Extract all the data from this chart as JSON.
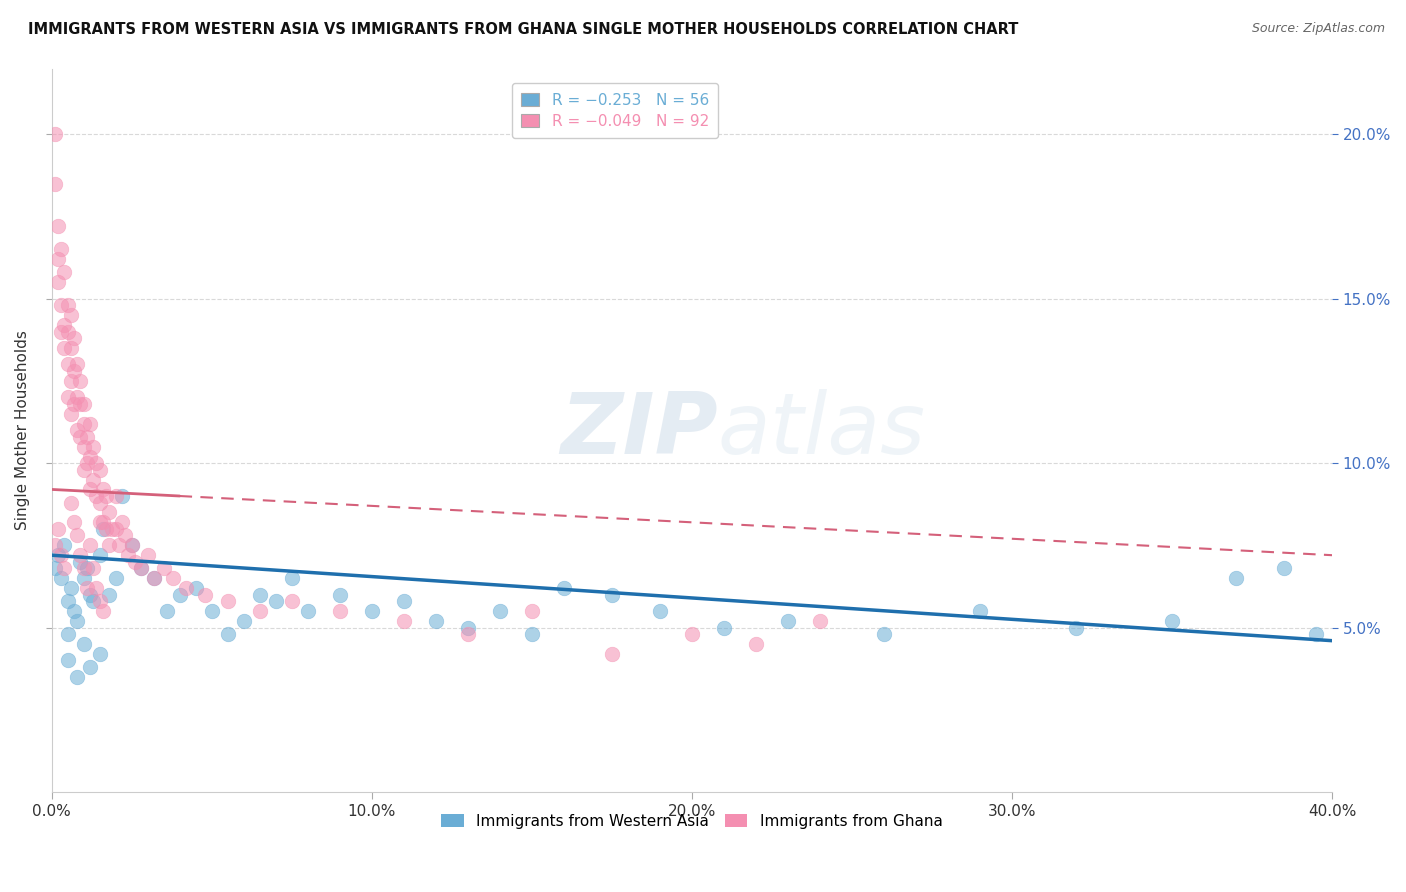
{
  "title": "IMMIGRANTS FROM WESTERN ASIA VS IMMIGRANTS FROM GHANA SINGLE MOTHER HOUSEHOLDS CORRELATION CHART",
  "source": "Source: ZipAtlas.com",
  "ylabel": "Single Mother Households",
  "legend_entries": [
    {
      "label": "R = −0.253   N = 56",
      "color": "#6aadd5"
    },
    {
      "label": "R = −0.049   N = 92",
      "color": "#f48fb1"
    }
  ],
  "bottom_legend": [
    "Immigrants from Western Asia",
    "Immigrants from Ghana"
  ],
  "xlim": [
    0.0,
    0.4
  ],
  "ylim": [
    0.0,
    0.22
  ],
  "right_yticks": [
    0.05,
    0.1,
    0.15,
    0.2
  ],
  "right_ytick_labels": [
    "5.0%",
    "10.0%",
    "15.0%",
    "20.0%"
  ],
  "xticks": [
    0.0,
    0.1,
    0.2,
    0.3,
    0.4
  ],
  "xtick_labels": [
    "0.0%",
    "10.0%",
    "20.0%",
    "30.0%",
    "40.0%"
  ],
  "watermark_zip": "ZIP",
  "watermark_atlas": "atlas",
  "background_color": "#ffffff",
  "grid_color": "#d0d0d0",
  "blue_color": "#6aadd5",
  "pink_color": "#f48fb1",
  "blue_line_color": "#1f6fad",
  "pink_line_color": "#d4607a",
  "wa_trend_start_y": 0.072,
  "wa_trend_end_y": 0.046,
  "gh_trend_start_y": 0.092,
  "gh_trend_end_y": 0.072,
  "western_asia_x": [
    0.001,
    0.002,
    0.003,
    0.004,
    0.005,
    0.005,
    0.006,
    0.007,
    0.008,
    0.009,
    0.01,
    0.011,
    0.012,
    0.013,
    0.015,
    0.016,
    0.018,
    0.02,
    0.022,
    0.025,
    0.028,
    0.032,
    0.036,
    0.04,
    0.045,
    0.05,
    0.055,
    0.06,
    0.065,
    0.07,
    0.075,
    0.08,
    0.09,
    0.1,
    0.11,
    0.12,
    0.13,
    0.14,
    0.15,
    0.16,
    0.175,
    0.19,
    0.21,
    0.23,
    0.26,
    0.29,
    0.32,
    0.35,
    0.37,
    0.385,
    0.395,
    0.005,
    0.008,
    0.01,
    0.012,
    0.015
  ],
  "western_asia_y": [
    0.068,
    0.072,
    0.065,
    0.075,
    0.058,
    0.048,
    0.062,
    0.055,
    0.052,
    0.07,
    0.065,
    0.068,
    0.06,
    0.058,
    0.072,
    0.08,
    0.06,
    0.065,
    0.09,
    0.075,
    0.068,
    0.065,
    0.055,
    0.06,
    0.062,
    0.055,
    0.048,
    0.052,
    0.06,
    0.058,
    0.065,
    0.055,
    0.06,
    0.055,
    0.058,
    0.052,
    0.05,
    0.055,
    0.048,
    0.062,
    0.06,
    0.055,
    0.05,
    0.052,
    0.048,
    0.055,
    0.05,
    0.052,
    0.065,
    0.068,
    0.048,
    0.04,
    0.035,
    0.045,
    0.038,
    0.042
  ],
  "ghana_x": [
    0.001,
    0.001,
    0.002,
    0.002,
    0.002,
    0.003,
    0.003,
    0.003,
    0.004,
    0.004,
    0.004,
    0.005,
    0.005,
    0.005,
    0.005,
    0.006,
    0.006,
    0.006,
    0.006,
    0.007,
    0.007,
    0.007,
    0.008,
    0.008,
    0.008,
    0.009,
    0.009,
    0.009,
    0.01,
    0.01,
    0.01,
    0.01,
    0.011,
    0.011,
    0.012,
    0.012,
    0.012,
    0.013,
    0.013,
    0.014,
    0.014,
    0.015,
    0.015,
    0.015,
    0.016,
    0.016,
    0.017,
    0.017,
    0.018,
    0.018,
    0.019,
    0.02,
    0.02,
    0.021,
    0.022,
    0.023,
    0.024,
    0.025,
    0.026,
    0.028,
    0.03,
    0.032,
    0.035,
    0.038,
    0.042,
    0.048,
    0.055,
    0.065,
    0.075,
    0.09,
    0.11,
    0.13,
    0.15,
    0.175,
    0.2,
    0.22,
    0.24,
    0.001,
    0.002,
    0.003,
    0.004,
    0.006,
    0.007,
    0.008,
    0.009,
    0.01,
    0.011,
    0.012,
    0.013,
    0.014,
    0.015,
    0.016
  ],
  "ghana_y": [
    0.2,
    0.185,
    0.172,
    0.162,
    0.155,
    0.165,
    0.148,
    0.14,
    0.158,
    0.142,
    0.135,
    0.148,
    0.14,
    0.13,
    0.12,
    0.145,
    0.135,
    0.125,
    0.115,
    0.138,
    0.128,
    0.118,
    0.13,
    0.12,
    0.11,
    0.125,
    0.118,
    0.108,
    0.118,
    0.112,
    0.105,
    0.098,
    0.108,
    0.1,
    0.112,
    0.102,
    0.092,
    0.105,
    0.095,
    0.1,
    0.09,
    0.098,
    0.088,
    0.082,
    0.092,
    0.082,
    0.09,
    0.08,
    0.085,
    0.075,
    0.08,
    0.09,
    0.08,
    0.075,
    0.082,
    0.078,
    0.072,
    0.075,
    0.07,
    0.068,
    0.072,
    0.065,
    0.068,
    0.065,
    0.062,
    0.06,
    0.058,
    0.055,
    0.058,
    0.055,
    0.052,
    0.048,
    0.055,
    0.042,
    0.048,
    0.045,
    0.052,
    0.075,
    0.08,
    0.072,
    0.068,
    0.088,
    0.082,
    0.078,
    0.072,
    0.068,
    0.062,
    0.075,
    0.068,
    0.062,
    0.058,
    0.055
  ]
}
